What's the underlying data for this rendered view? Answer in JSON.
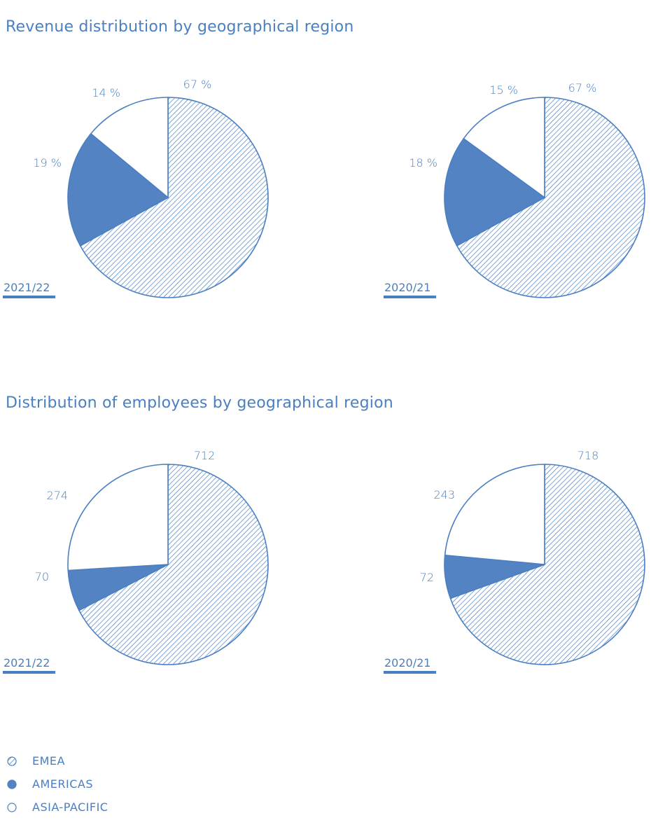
{
  "colors": {
    "accent": "#4a7fc1",
    "fill": "#5383c3",
    "white": "#ffffff"
  },
  "sections": [
    {
      "title": "Revenue distribution by geographical region"
    },
    {
      "title": "Distribution of employees by geographical region"
    }
  ],
  "chart_data": [
    {
      "type": "pie",
      "label": "2021/22",
      "categories": [
        "EMEA",
        "AMERICAS",
        "ASIA-PACIFIC"
      ],
      "values": [
        67,
        19,
        14
      ],
      "labels": [
        "67 %",
        "19 %",
        "14 %"
      ]
    },
    {
      "type": "pie",
      "label": "2020/21",
      "categories": [
        "EMEA",
        "AMERICAS",
        "ASIA-PACIFIC"
      ],
      "values": [
        67,
        18,
        15
      ],
      "labels": [
        "67 %",
        "18 %",
        "15 %"
      ]
    },
    {
      "type": "pie",
      "label": "2021/22",
      "categories": [
        "EMEA",
        "AMERICAS",
        "ASIA-PACIFIC"
      ],
      "values": [
        712,
        70,
        274
      ],
      "labels": [
        "712",
        "70",
        "274"
      ]
    },
    {
      "type": "pie",
      "label": "2020/21",
      "categories": [
        "EMEA",
        "AMERICAS",
        "ASIA-PACIFIC"
      ],
      "values": [
        718,
        72,
        243
      ],
      "labels": [
        "718",
        "72",
        "243"
      ]
    }
  ],
  "legend": [
    {
      "label": "EMEA",
      "style": "hatched"
    },
    {
      "label": "AMERICAS",
      "style": "filled"
    },
    {
      "label": "ASIA-PACIFIC",
      "style": "outline"
    }
  ]
}
